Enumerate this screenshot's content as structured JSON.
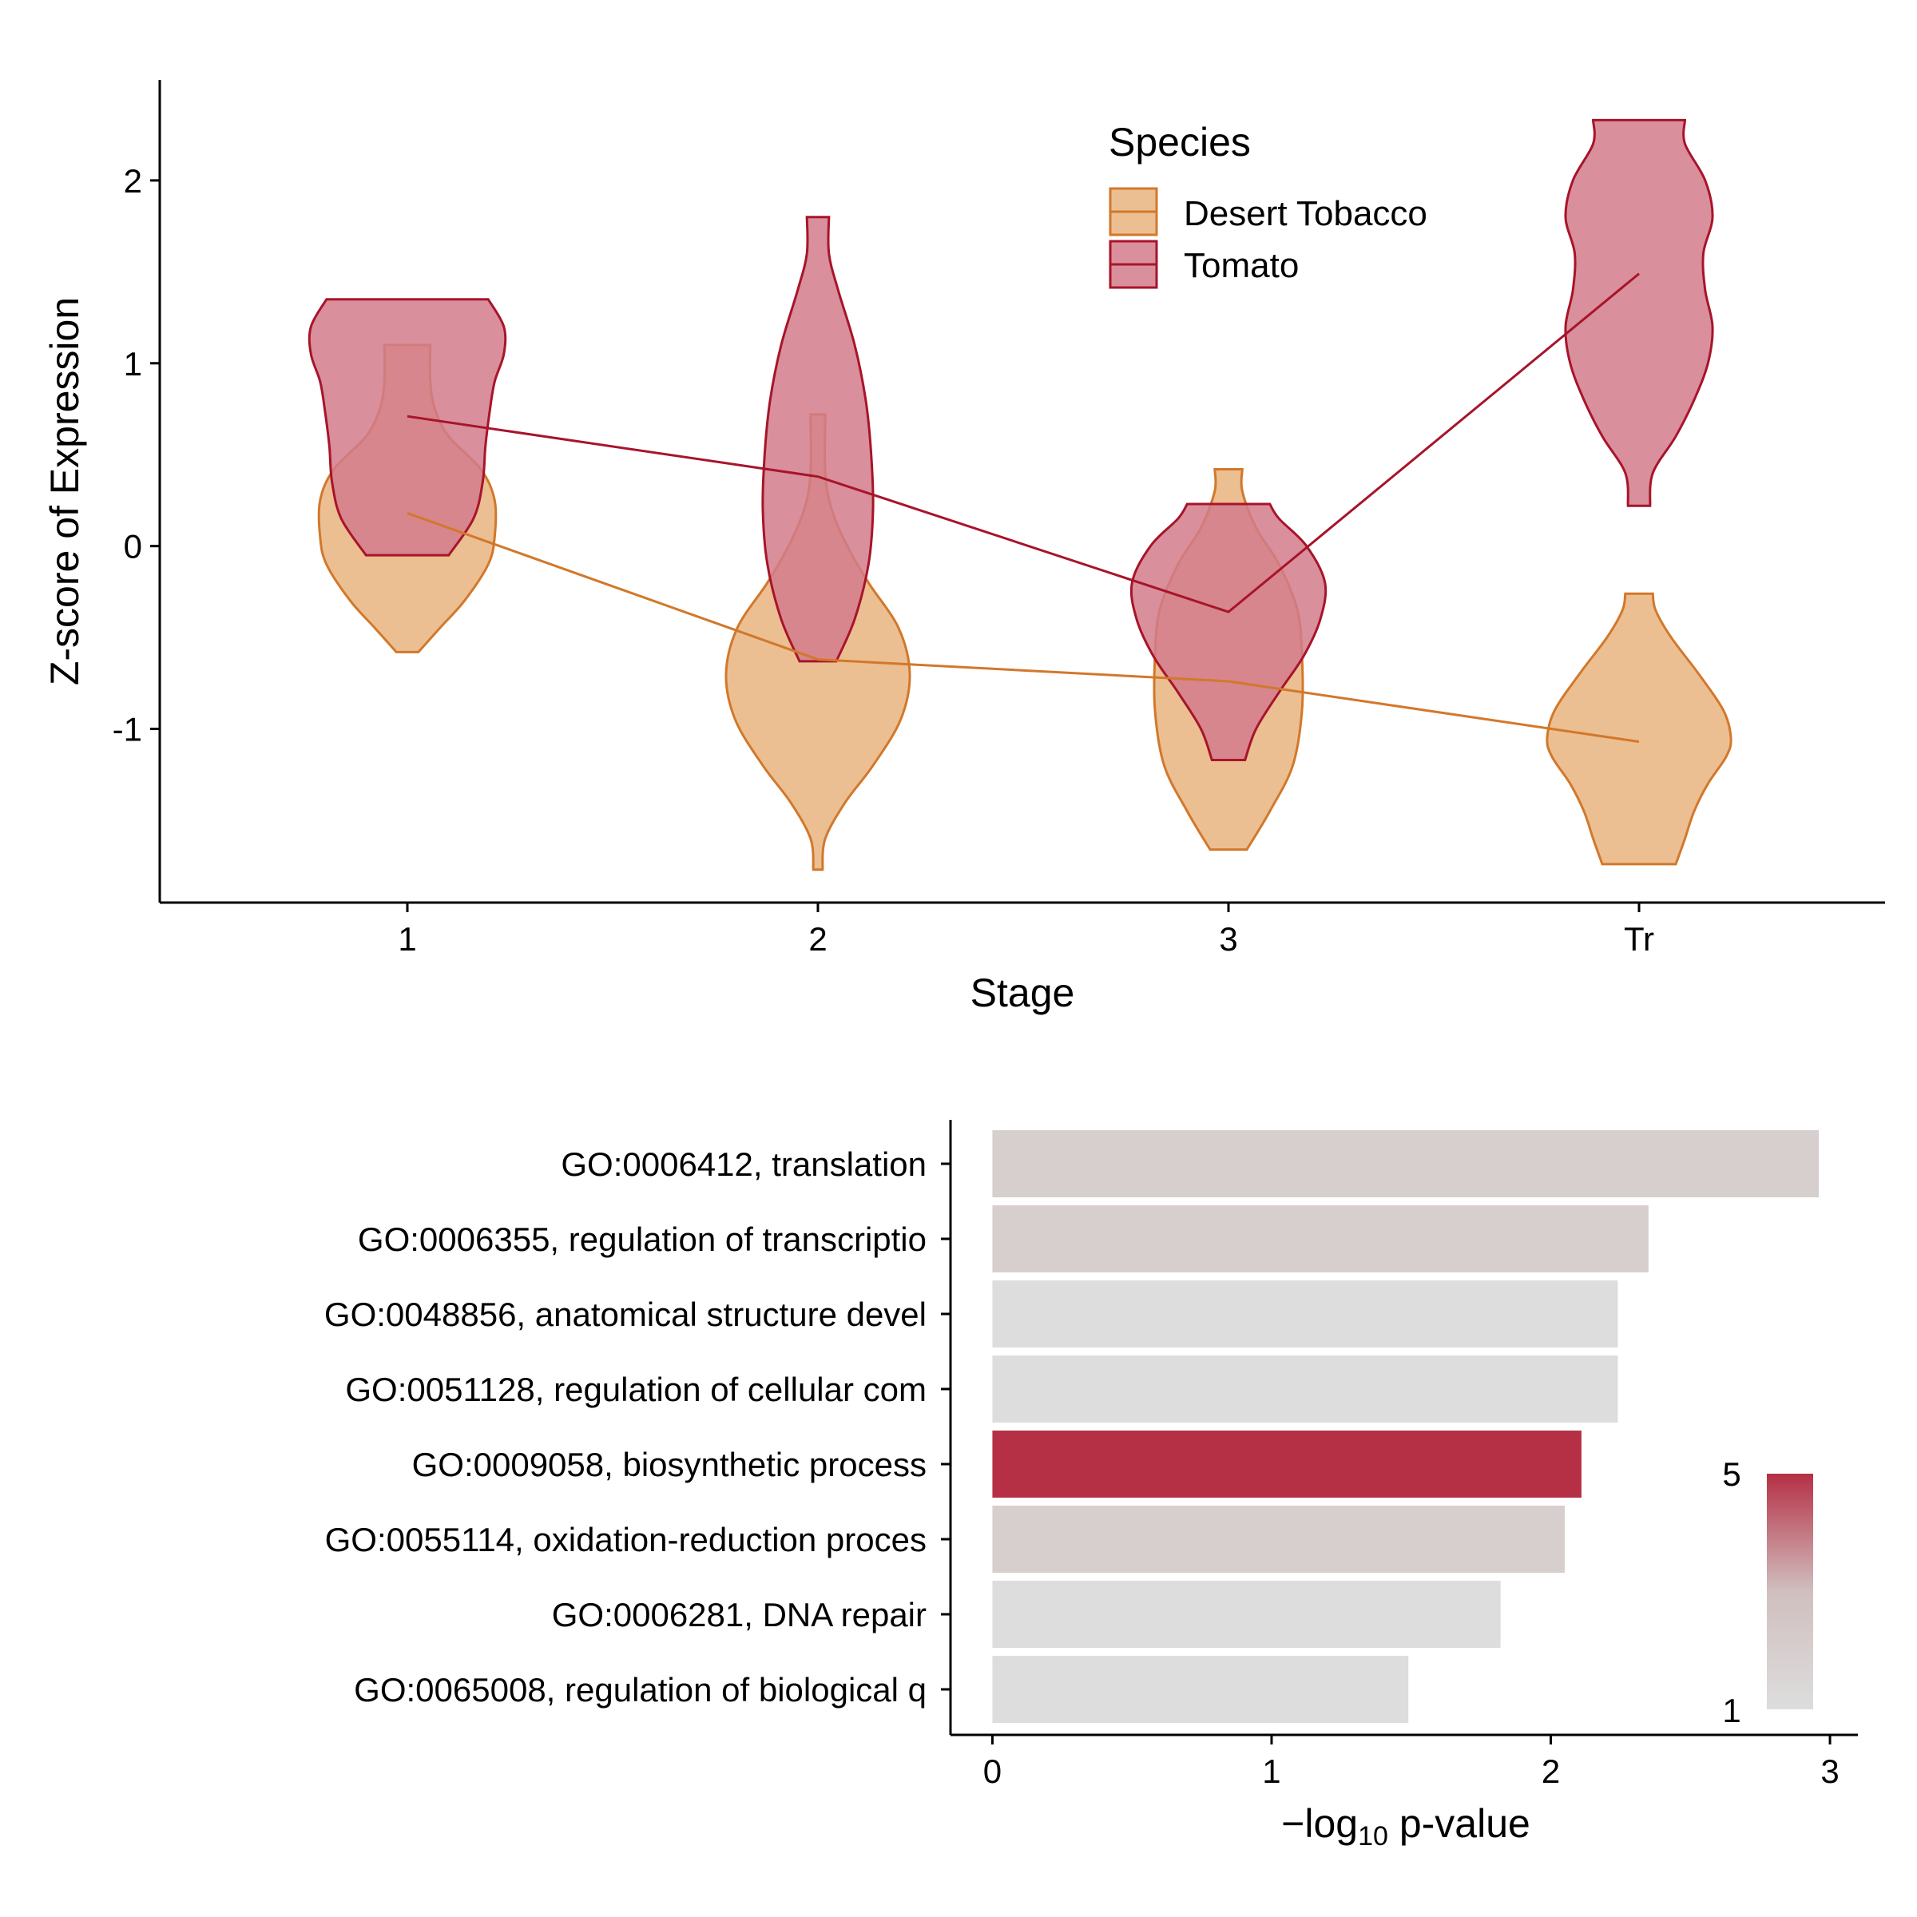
{
  "chart_data": [
    {
      "type": "violin",
      "xlabel": "Stage",
      "ylabel": "Z-score of Expression",
      "categories": [
        "1",
        "2",
        "3",
        "Tr"
      ],
      "ylim": [
        -1.95,
        2.55
      ],
      "yticks": [
        2,
        1,
        0,
        -1
      ],
      "ytick_labels": [
        "2",
        "1",
        "0",
        "-1"
      ],
      "legend": {
        "title": "Species",
        "placement": "top-right"
      },
      "series": [
        {
          "name": "Desert Tobacco",
          "color": "#d2782b",
          "fill": "#e8b47f",
          "medians": [
            0.18,
            -0.62,
            -0.74,
            -1.07
          ],
          "violins": [
            {
              "min": -0.58,
              "max": 1.1,
              "profile": [
                [
                  -0.58,
                  0.12
                ],
                [
                  -0.45,
                  0.35
                ],
                [
                  -0.3,
                  0.62
                ],
                [
                  -0.1,
                  0.88
                ],
                [
                  0.05,
                  0.95
                ],
                [
                  0.25,
                  0.95
                ],
                [
                  0.42,
                  0.8
                ],
                [
                  0.6,
                  0.45
                ],
                [
                  0.75,
                  0.3
                ],
                [
                  0.9,
                  0.25
                ],
                [
                  1.1,
                  0.25
                ]
              ]
            },
            {
              "min": -1.77,
              "max": 0.72,
              "profile": [
                [
                  -1.77,
                  0.05
                ],
                [
                  -1.6,
                  0.08
                ],
                [
                  -1.4,
                  0.3
                ],
                [
                  -1.2,
                  0.6
                ],
                [
                  -0.95,
                  0.9
                ],
                [
                  -0.7,
                  1.0
                ],
                [
                  -0.45,
                  0.88
                ],
                [
                  -0.2,
                  0.55
                ],
                [
                  0.0,
                  0.32
                ],
                [
                  0.2,
                  0.15
                ],
                [
                  0.4,
                  0.08
                ],
                [
                  0.72,
                  0.08
                ]
              ]
            },
            {
              "min": -1.66,
              "max": 0.42,
              "profile": [
                [
                  -1.66,
                  0.2
                ],
                [
                  -1.45,
                  0.45
                ],
                [
                  -1.2,
                  0.7
                ],
                [
                  -0.9,
                  0.8
                ],
                [
                  -0.6,
                  0.8
                ],
                [
                  -0.35,
                  0.75
                ],
                [
                  -0.1,
                  0.55
                ],
                [
                  0.1,
                  0.3
                ],
                [
                  0.3,
                  0.15
                ],
                [
                  0.42,
                  0.15
                ]
              ]
            },
            {
              "min": -1.74,
              "max": -0.26,
              "profile": [
                [
                  -1.74,
                  0.4
                ],
                [
                  -1.6,
                  0.5
                ],
                [
                  -1.45,
                  0.6
                ],
                [
                  -1.3,
                  0.75
                ],
                [
                  -1.15,
                  0.95
                ],
                [
                  -1.05,
                  1.0
                ],
                [
                  -0.9,
                  0.92
                ],
                [
                  -0.7,
                  0.65
                ],
                [
                  -0.5,
                  0.35
                ],
                [
                  -0.35,
                  0.18
                ],
                [
                  -0.26,
                  0.15
                ]
              ]
            }
          ]
        },
        {
          "name": "Tomato",
          "color": "#a8142a",
          "fill": "#d27b8b",
          "medians": [
            0.71,
            0.38,
            -0.36,
            1.49
          ],
          "violins": [
            {
              "min": -0.05,
              "max": 1.35,
              "profile": [
                [
                  -0.05,
                  0.45
                ],
                [
                  0.15,
                  0.72
                ],
                [
                  0.35,
                  0.82
                ],
                [
                  0.55,
                  0.85
                ],
                [
                  0.75,
                  0.9
                ],
                [
                  0.9,
                  0.95
                ],
                [
                  1.05,
                  1.05
                ],
                [
                  1.2,
                  1.05
                ],
                [
                  1.35,
                  0.88
                ]
              ]
            },
            {
              "min": -0.63,
              "max": 1.8,
              "profile": [
                [
                  -0.63,
                  0.2
                ],
                [
                  -0.4,
                  0.4
                ],
                [
                  -0.1,
                  0.55
                ],
                [
                  0.2,
                  0.6
                ],
                [
                  0.5,
                  0.58
                ],
                [
                  0.8,
                  0.52
                ],
                [
                  1.1,
                  0.4
                ],
                [
                  1.4,
                  0.22
                ],
                [
                  1.6,
                  0.12
                ],
                [
                  1.8,
                  0.12
                ]
              ]
            },
            {
              "min": -1.17,
              "max": 0.23,
              "profile": [
                [
                  -1.17,
                  0.18
                ],
                [
                  -1.0,
                  0.3
                ],
                [
                  -0.8,
                  0.55
                ],
                [
                  -0.6,
                  0.82
                ],
                [
                  -0.4,
                  1.0
                ],
                [
                  -0.2,
                  1.05
                ],
                [
                  0.0,
                  0.85
                ],
                [
                  0.15,
                  0.55
                ],
                [
                  0.23,
                  0.45
                ]
              ]
            },
            {
              "min": 0.22,
              "max": 2.33,
              "profile": [
                [
                  0.22,
                  0.12
                ],
                [
                  0.4,
                  0.15
                ],
                [
                  0.6,
                  0.4
                ],
                [
                  0.8,
                  0.6
                ],
                [
                  1.0,
                  0.75
                ],
                [
                  1.2,
                  0.8
                ],
                [
                  1.4,
                  0.72
                ],
                [
                  1.6,
                  0.7
                ],
                [
                  1.8,
                  0.8
                ],
                [
                  2.0,
                  0.72
                ],
                [
                  2.2,
                  0.5
                ],
                [
                  2.33,
                  0.5
                ]
              ]
            }
          ]
        }
      ]
    },
    {
      "type": "bar",
      "orientation": "horizontal",
      "xlabel_prefix": "−log",
      "xlabel_sub": "10",
      "xlabel_suffix": " p-value",
      "xlim": [
        -0.15,
        3.1
      ],
      "xticks": [
        0,
        1,
        2,
        3
      ],
      "xtick_labels": [
        "0",
        "1",
        "2",
        "3"
      ],
      "categories": [
        "GO:0006412, translation",
        "GO:0006355, regulation of transcriptio",
        "GO:0048856, anatomical structure devel",
        "GO:0051128, regulation of cellular com",
        "GO:0009058, biosynthetic process",
        "GO:0055114, oxidation-reduction proces",
        "GO:0006281, DNA repair",
        "GO:0065008, regulation of biological q"
      ],
      "values": [
        2.96,
        2.35,
        2.24,
        2.24,
        2.11,
        2.05,
        1.82,
        1.49
      ],
      "color_values": [
        2,
        2,
        1,
        1,
        5,
        2,
        1,
        1
      ],
      "colorbar": {
        "min": 1,
        "max": 5,
        "labels": [
          "5",
          "1"
        ],
        "low_color": "#dddddd",
        "high_color": "#b53045",
        "mid_color": "#d1bfbf"
      }
    }
  ]
}
